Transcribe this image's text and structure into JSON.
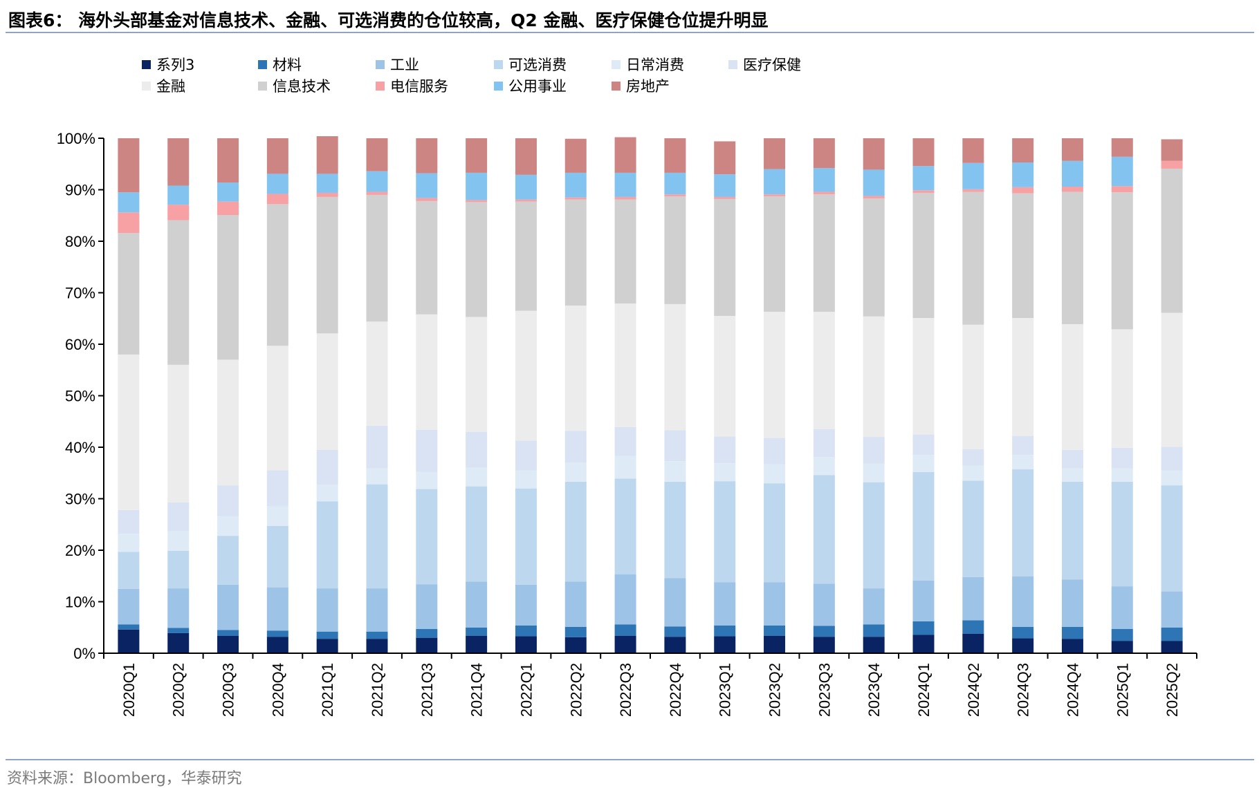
{
  "header": {
    "title": "图表6：  海外头部基金对信息技术、金融、可选消费的仓位较高，Q2 金融、医疗保健仓位提升明显"
  },
  "footer": {
    "source": "资料来源：Bloomberg，华泰研究"
  },
  "chart_data": {
    "type": "bar",
    "stacked": true,
    "title": "海外头部基金对信息技术、金融、可选消费的仓位较高，Q2 金融、医疗保健仓位提升明显",
    "xlabel": "",
    "ylabel": "",
    "ylim": [
      0,
      100
    ],
    "yticks": [
      "0%",
      "10%",
      "20%",
      "30%",
      "40%",
      "50%",
      "60%",
      "70%",
      "80%",
      "90%",
      "100%"
    ],
    "legend_position": "top-left",
    "categories": [
      "2020Q1",
      "2020Q2",
      "2020Q3",
      "2020Q4",
      "2021Q1",
      "2021Q2",
      "2021Q3",
      "2021Q4",
      "2022Q1",
      "2022Q2",
      "2022Q3",
      "2022Q4",
      "2023Q1",
      "2023Q2",
      "2023Q3",
      "2023Q4",
      "2024Q1",
      "2024Q2",
      "2024Q3",
      "2024Q4",
      "2025Q1",
      "2025Q2"
    ],
    "series": [
      {
        "name": "系列3",
        "color": "#0a2463",
        "values": [
          4.6,
          3.9,
          3.4,
          3.2,
          2.8,
          2.8,
          3.0,
          3.4,
          3.3,
          3.1,
          3.4,
          3.2,
          3.3,
          3.4,
          3.2,
          3.2,
          3.6,
          3.8,
          2.9,
          2.8,
          2.4,
          2.4
        ]
      },
      {
        "name": "材料",
        "color": "#2e75b6",
        "values": [
          1.0,
          1.0,
          1.1,
          1.2,
          1.4,
          1.4,
          1.7,
          1.6,
          2.1,
          2.0,
          2.2,
          2.0,
          2.1,
          2.0,
          2.1,
          2.4,
          2.6,
          2.6,
          2.2,
          2.3,
          2.3,
          2.6
        ]
      },
      {
        "name": "工业",
        "color": "#9dc3e6",
        "values": [
          6.9,
          7.7,
          8.8,
          8.4,
          8.4,
          8.4,
          8.7,
          8.9,
          7.9,
          8.8,
          9.7,
          9.4,
          8.4,
          8.4,
          8.2,
          7.0,
          7.9,
          8.4,
          9.8,
          9.2,
          8.3,
          7.0
        ]
      },
      {
        "name": "可选消费",
        "color": "#bdd7ee",
        "values": [
          7.2,
          7.3,
          9.5,
          11.9,
          16.9,
          20.2,
          18.5,
          18.5,
          18.7,
          19.4,
          18.6,
          18.7,
          19.6,
          19.2,
          21.1,
          20.6,
          21.1,
          18.7,
          20.8,
          19.0,
          20.3,
          20.6
        ]
      },
      {
        "name": "日常消费",
        "color": "#deebf7",
        "values": [
          3.5,
          3.8,
          3.8,
          3.8,
          3.2,
          3.1,
          3.3,
          3.6,
          3.5,
          3.7,
          4.4,
          4.0,
          3.5,
          3.7,
          3.5,
          3.6,
          3.3,
          2.9,
          2.8,
          2.6,
          2.6,
          2.9
        ]
      },
      {
        "name": "医疗保健",
        "color": "#dae3f3",
        "values": [
          4.6,
          5.6,
          6.0,
          7.0,
          6.8,
          8.3,
          8.2,
          7.0,
          5.8,
          6.2,
          5.6,
          6.0,
          5.2,
          5.1,
          5.4,
          5.2,
          4.0,
          3.2,
          3.7,
          3.6,
          4.0,
          4.6
        ]
      },
      {
        "name": "金融",
        "color": "#ececec",
        "values": [
          30.2,
          26.7,
          24.4,
          24.2,
          22.6,
          20.2,
          22.4,
          22.3,
          25.2,
          24.3,
          24.0,
          24.5,
          23.4,
          24.5,
          22.8,
          23.4,
          22.6,
          24.2,
          22.9,
          24.4,
          23.0,
          26.0
        ]
      },
      {
        "name": "信息技术",
        "color": "#d0d0d0",
        "values": [
          23.6,
          28.1,
          28.1,
          27.5,
          26.5,
          24.6,
          22.0,
          22.3,
          21.2,
          20.6,
          20.2,
          20.9,
          22.7,
          22.4,
          22.8,
          22.9,
          24.3,
          25.8,
          24.2,
          25.7,
          26.6,
          28.0
        ]
      },
      {
        "name": "电信服务",
        "color": "#f8a1a4",
        "values": [
          4.0,
          3.0,
          2.6,
          2.0,
          0.8,
          0.6,
          0.6,
          0.4,
          0.4,
          0.4,
          0.5,
          0.4,
          0.4,
          0.4,
          0.5,
          0.5,
          0.5,
          0.5,
          1.2,
          1.0,
          1.2,
          1.5
        ]
      },
      {
        "name": "公用事业",
        "color": "#83c3f0",
        "values": [
          3.9,
          3.7,
          3.7,
          3.9,
          3.7,
          4.0,
          4.8,
          5.3,
          4.8,
          4.8,
          4.7,
          4.2,
          4.4,
          4.9,
          4.6,
          5.1,
          4.7,
          5.1,
          4.8,
          5.0,
          5.7,
          0.0
        ]
      },
      {
        "name": "房地产",
        "color": "#cd8583",
        "values": [
          10.5,
          9.2,
          8.6,
          6.9,
          7.3,
          6.4,
          6.8,
          6.7,
          7.1,
          6.6,
          6.9,
          6.7,
          6.4,
          6.0,
          5.8,
          6.1,
          5.4,
          4.8,
          4.7,
          4.4,
          3.6,
          4.2
        ]
      }
    ]
  }
}
